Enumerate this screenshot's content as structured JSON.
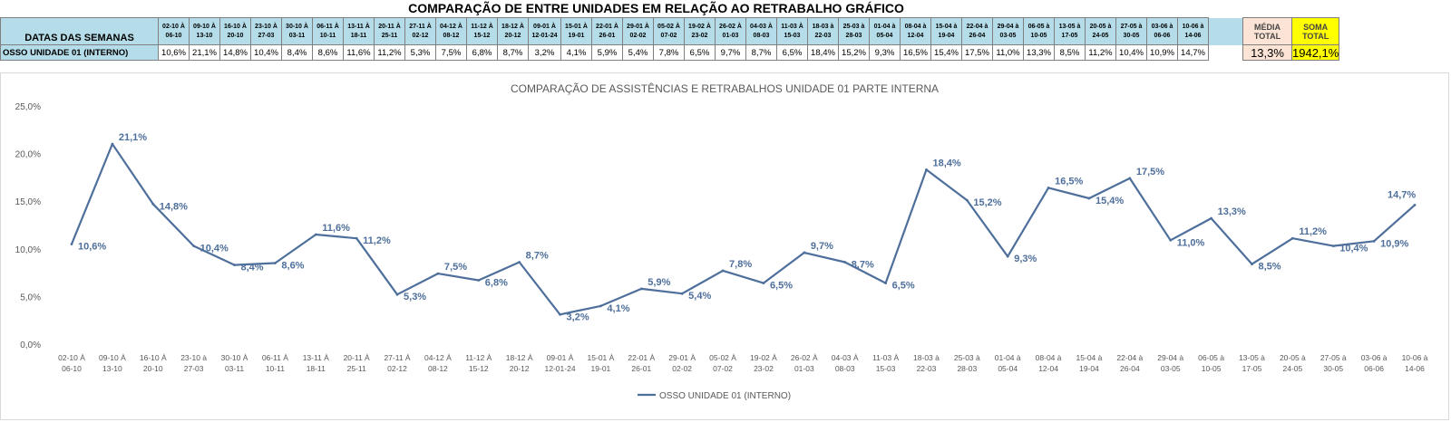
{
  "sheet_title": "COMPARAÇÃO DE ENTRE UNIDADES EM RELAÇÃO AO RETRABALHO GRÁFICO",
  "table": {
    "header_label": "DATAS DAS SEMANAS",
    "row_label": "OSSO UNIDADE 01 (INTERNO)",
    "weeks": [
      [
        "02-10 À",
        "06-10"
      ],
      [
        "09-10 À",
        "13-10"
      ],
      [
        "16-10 À",
        "20-10"
      ],
      [
        "23-10 À",
        "27-03"
      ],
      [
        "30-10 À",
        "03-11"
      ],
      [
        "06-11 À",
        "10-11"
      ],
      [
        "13-11 À",
        "18-11"
      ],
      [
        "20-11 À",
        "25-11"
      ],
      [
        "27-11 À",
        "02-12"
      ],
      [
        "04-12 À",
        "08-12"
      ],
      [
        "11-12 À",
        "15-12"
      ],
      [
        "18-12 À",
        "20-12"
      ],
      [
        "09-01 À",
        "12-01-24"
      ],
      [
        "15-01 À",
        "19-01"
      ],
      [
        "22-01 À",
        "26-01"
      ],
      [
        "29-01 À",
        "02-02"
      ],
      [
        "05-02 À",
        "07-02"
      ],
      [
        "19-02 À",
        "23-02"
      ],
      [
        "26-02 À",
        "01-03"
      ],
      [
        "04-03 À",
        "08-03"
      ],
      [
        "11-03 À",
        "15-03"
      ],
      [
        "18-03 à",
        "22-03"
      ],
      [
        "25-03 à",
        "28-03"
      ],
      [
        "01-04 à",
        "05-04"
      ],
      [
        "08-04 à",
        "12-04"
      ],
      [
        "15-04 à",
        "19-04"
      ],
      [
        "22-04 à",
        "26-04"
      ],
      [
        "29-04 à",
        "03-05"
      ],
      [
        "06-05 à",
        "10-05"
      ],
      [
        "13-05 à",
        "17-05"
      ],
      [
        "20-05 à",
        "24-05"
      ],
      [
        "27-05 à",
        "30-05"
      ],
      [
        "03-06 à",
        "06-06"
      ],
      [
        "10-06 à",
        "14-06"
      ]
    ],
    "values": [
      "10,6%",
      "21,1%",
      "14,8%",
      "10,4%",
      "8,4%",
      "8,6%",
      "11,6%",
      "11,2%",
      "5,3%",
      "7,5%",
      "6,8%",
      "8,7%",
      "3,2%",
      "4,1%",
      "5,9%",
      "5,4%",
      "7,8%",
      "6,5%",
      "9,7%",
      "8,7%",
      "6,5%",
      "18,4%",
      "15,2%",
      "9,3%",
      "16,5%",
      "15,4%",
      "17,5%",
      "11,0%",
      "13,3%",
      "8,5%",
      "11,2%",
      "10,4%",
      "10,9%",
      "14,7%"
    ],
    "average_label": [
      "MÉDIA",
      "TOTAL"
    ],
    "average_value": "13,3%",
    "sum_label": [
      "SOMA",
      "TOTAL"
    ],
    "sum_value": "1942,1%"
  },
  "chart_data": {
    "type": "line",
    "title": "COMPARAÇÃO DE ASSISTÊNCIAS E RETRABALHOS UNIDADE 01 PARTE INTERNA",
    "categories": [
      [
        "02-10 À",
        "06-10"
      ],
      [
        "09-10 À",
        "13-10"
      ],
      [
        "16-10 À",
        "20-10"
      ],
      [
        "23-10 à",
        "27-03"
      ],
      [
        "30-10 À",
        "03-11"
      ],
      [
        "06-11 À",
        "10-11"
      ],
      [
        "13-11 À",
        "18-11"
      ],
      [
        "20-11 À",
        "25-11"
      ],
      [
        "27-11 À",
        "02-12"
      ],
      [
        "04-12 À",
        "08-12"
      ],
      [
        "11-12 À",
        "15-12"
      ],
      [
        "18-12 À",
        "20-12"
      ],
      [
        "09-01 À",
        "12-01-24"
      ],
      [
        "15-01 À",
        "19-01"
      ],
      [
        "22-01 À",
        "26-01"
      ],
      [
        "29-01 À",
        "02-02"
      ],
      [
        "05-02 À",
        "07-02"
      ],
      [
        "19-02 À",
        "23-02"
      ],
      [
        "26-02 À",
        "01-03"
      ],
      [
        "04-03 À",
        "08-03"
      ],
      [
        "11-03 À",
        "15-03"
      ],
      [
        "18-03 à",
        "22-03"
      ],
      [
        "25-03 à",
        "28-03"
      ],
      [
        "01-04 à",
        "05-04"
      ],
      [
        "08-04 à",
        "12-04"
      ],
      [
        "15-04 à",
        "19-04"
      ],
      [
        "22-04 à",
        "26-04"
      ],
      [
        "29-04 à",
        "03-05"
      ],
      [
        "06-05 à",
        "10-05"
      ],
      [
        "13-05 à",
        "17-05"
      ],
      [
        "20-05 à",
        "24-05"
      ],
      [
        "27-05 à",
        "30-05"
      ],
      [
        "03-06 à",
        "06-06"
      ],
      [
        "10-06 à",
        "14-06"
      ]
    ],
    "series": [
      {
        "name": "OSSO UNIDADE 01 (INTERNO)",
        "values": [
          10.6,
          21.1,
          14.8,
          10.4,
          8.4,
          8.6,
          11.6,
          11.2,
          5.3,
          7.5,
          6.8,
          8.7,
          3.2,
          4.1,
          5.9,
          5.4,
          7.8,
          6.5,
          9.7,
          8.7,
          6.5,
          18.4,
          15.2,
          9.3,
          16.5,
          15.4,
          17.5,
          11.0,
          13.3,
          8.5,
          11.2,
          10.4,
          10.9,
          14.7
        ],
        "labels": [
          "10,6%",
          "21,1%",
          "14,8%",
          "10,4%",
          "8,4%",
          "8,6%",
          "11,6%",
          "11,2%",
          "5,3%",
          "7,5%",
          "6,8%",
          "8,7%",
          "3,2%",
          "4,1%",
          "5,9%",
          "5,4%",
          "7,8%",
          "6,5%",
          "9,7%",
          "8,7%",
          "6,5%",
          "18,4%",
          "15,2%",
          "9,3%",
          "16,5%",
          "15,4%",
          "17,5%",
          "11,0%",
          "13,3%",
          "8,5%",
          "11,2%",
          "10,4%",
          "10,9%",
          "14,7%"
        ],
        "color": "#4e6f9b"
      }
    ],
    "yticks": [
      "0,0%",
      "5,0%",
      "10,0%",
      "15,0%",
      "20,0%",
      "25,0%"
    ],
    "ylim": [
      0,
      25
    ],
    "grid": false,
    "legend_position": "bottom-center"
  }
}
